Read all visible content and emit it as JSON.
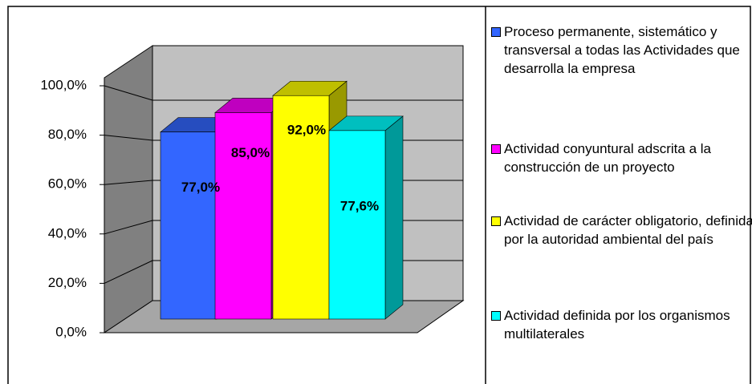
{
  "chart_data": {
    "type": "bar3d",
    "categories": [
      null
    ],
    "series": [
      {
        "name": "Proceso permanente, sistemático y transversal a todas las  Actividades que desarrolla la empresa",
        "color": "#3366ff",
        "values": [
          77.0
        ],
        "value_labels": [
          "77,0%"
        ]
      },
      {
        "name": "Actividad conyuntural adscrita a la construcción de un proyecto",
        "color": "#ff00ff",
        "values": [
          85.0
        ],
        "value_labels": [
          "85,0%"
        ]
      },
      {
        "name": "Actividad de carácter obligatorio, definida por la autoridad ambiental del país",
        "color": "#ffff00",
        "values": [
          92.0
        ],
        "value_labels": [
          "92,0%"
        ]
      },
      {
        "name": "Actividad definida por los organismos multilaterales",
        "color": "#00ffff",
        "values": [
          77.6
        ],
        "value_labels": [
          "77,6%"
        ]
      }
    ],
    "ylim": [
      0,
      100
    ],
    "yticks": [
      {
        "value": 0,
        "label": "0,0%"
      },
      {
        "value": 20,
        "label": "20,0%"
      },
      {
        "value": 40,
        "label": "40,0%"
      },
      {
        "value": 60,
        "label": "60,0%"
      },
      {
        "value": 80,
        "label": "80,0%"
      },
      {
        "value": 100,
        "label": "100,0%"
      }
    ],
    "grid": true,
    "legend": "right"
  }
}
